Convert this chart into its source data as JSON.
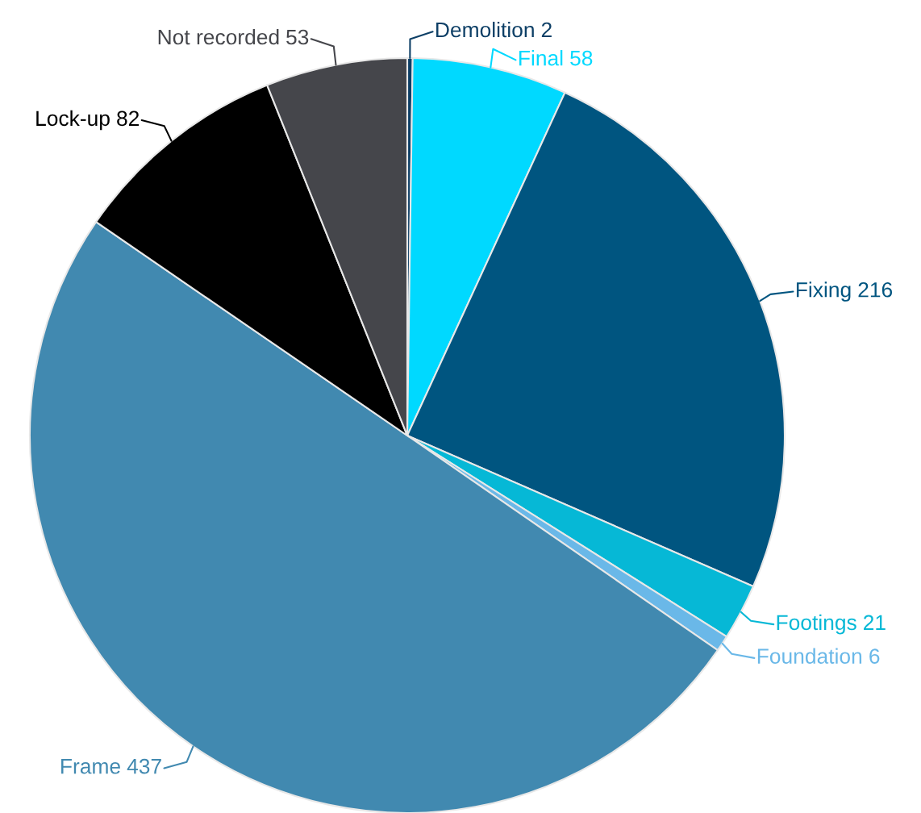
{
  "chart_data": {
    "type": "pie",
    "categories": [
      "Demolition",
      "Final",
      "Fixing",
      "Footings",
      "Foundation",
      "Frame",
      "Lock-up",
      "Not recorded"
    ],
    "values": [
      2,
      58,
      216,
      21,
      6,
      437,
      82,
      53
    ],
    "colors": [
      "#0d3f66",
      "#00d9ff",
      "#005580",
      "#06b8d6",
      "#6ab8e8",
      "#4189b0",
      "#000000",
      "#45464b"
    ],
    "data_labels": true
  }
}
